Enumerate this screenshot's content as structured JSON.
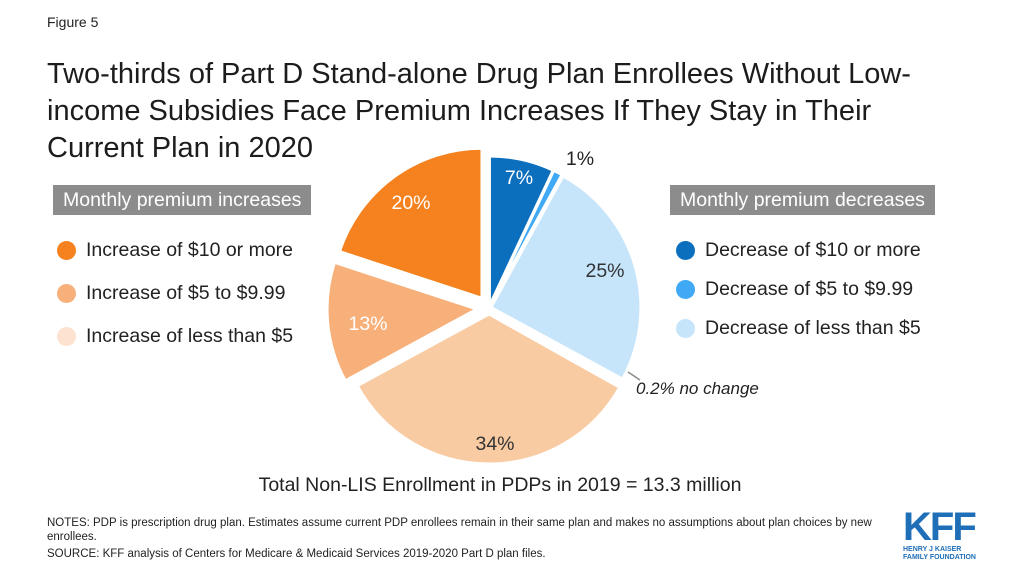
{
  "figure_label": "Figure 5",
  "title": "Two-thirds of Part D Stand-alone Drug Plan Enrollees Without Low-income Subsidies Face Premium Increases If They Stay in Their Current Plan in 2020",
  "legend": {
    "increases_header": "Monthly premium increases",
    "decreases_header": "Monthly premium decreases",
    "increases": [
      {
        "label": "Increase of $10 or more",
        "color": "#f5821f"
      },
      {
        "label": "Increase of $5 to $9.99",
        "color": "#f8b07a"
      },
      {
        "label": "Increase of less than $5",
        "color": "#fde3cf"
      }
    ],
    "decreases": [
      {
        "label": "Decrease of $10 or more",
        "color": "#0b6fbe"
      },
      {
        "label": "Decrease of $5 to $9.99",
        "color": "#3fa9f5"
      },
      {
        "label": "Decrease of less than $5",
        "color": "#c6e5fb"
      }
    ]
  },
  "chart_data": {
    "type": "pie",
    "start": "12 o'clock, clockwise",
    "slices": [
      {
        "name": "Decrease of $10 or more",
        "value": 7,
        "label": "7%",
        "color": "#0b6fbe"
      },
      {
        "name": "Decrease of $5 to $9.99",
        "value": 1,
        "label": "1%",
        "color": "#3fa9f5"
      },
      {
        "name": "Decrease of less than $5",
        "value": 25,
        "label": "25%",
        "color": "#c6e5fb"
      },
      {
        "name": "no change",
        "value": 0.2,
        "label": "0.2% no change",
        "color": "#8c8c8c"
      },
      {
        "name": "Increase of less than $5",
        "value": 34,
        "label": "34%",
        "color": "#f9cba3"
      },
      {
        "name": "Increase of $5 to $9.99",
        "value": 13,
        "label": "13%",
        "color": "#f8b07a"
      },
      {
        "name": "Increase of $10 or more",
        "value": 20,
        "label": "20%",
        "color": "#f5821f"
      }
    ]
  },
  "total_text": "Total Non-LIS Enrollment in PDPs in 2019 = 13.3 million",
  "notes": "NOTES: PDP is prescription drug plan. Estimates assume current PDP enrollees remain in their same plan and makes no assumptions about plan choices by new enrollees.",
  "source": "SOURCE: KFF analysis of Centers for Medicare & Medicaid Services 2019-2020 Part D plan files.",
  "logo": {
    "mark": "KFF",
    "line1": "HENRY J KAISER",
    "line2": "FAMILY FOUNDATION"
  }
}
